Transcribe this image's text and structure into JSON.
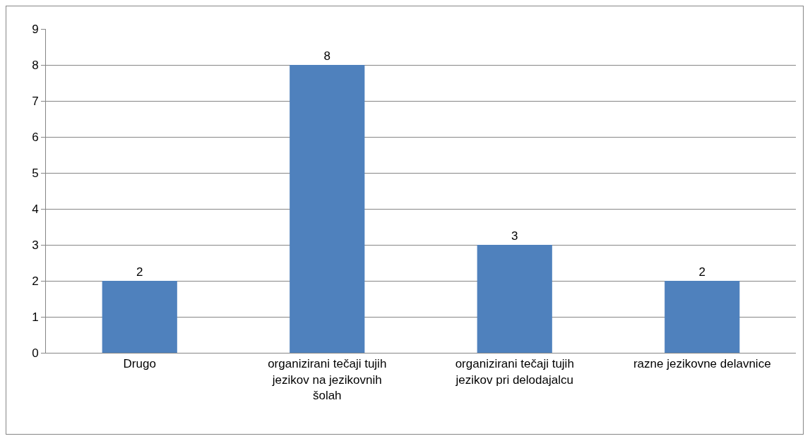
{
  "chart_data": {
    "type": "bar",
    "categories": [
      "Drugo",
      "organizirani tečaji tujih jezikov na jezikovnih šolah",
      "organizirani tečaji tujih jezikov pri delodajalcu",
      "razne jezikovne delavnice"
    ],
    "values": [
      2,
      8,
      3,
      2
    ],
    "color": "#4f81bd",
    "ylim": [
      0,
      9
    ],
    "yticks": [
      0,
      1,
      2,
      3,
      4,
      5,
      6,
      7,
      8,
      9
    ],
    "grid": "y",
    "data_labels": true
  }
}
